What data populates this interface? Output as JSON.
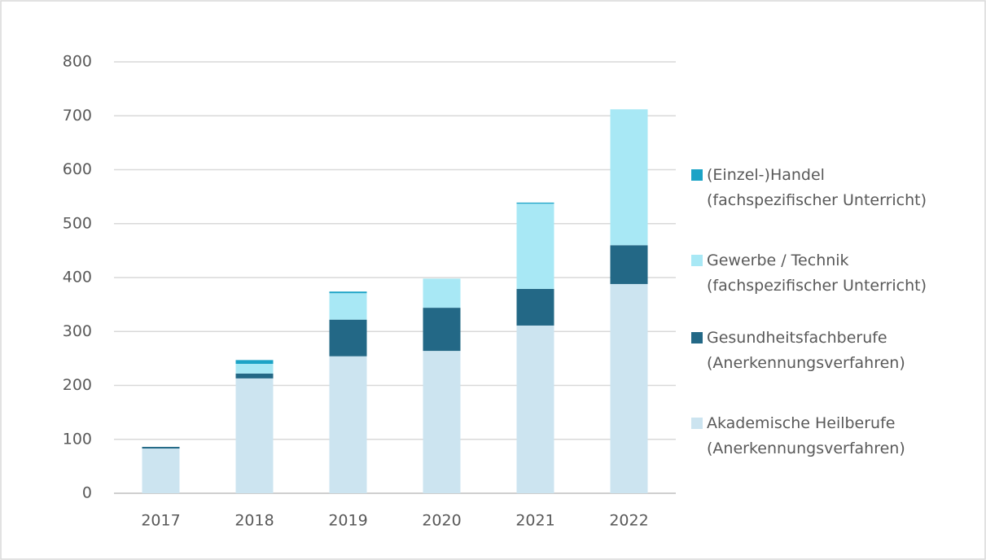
{
  "chart_data": {
    "type": "stacked_bar",
    "categories": [
      "2017",
      "2018",
      "2019",
      "2020",
      "2021",
      "2022"
    ],
    "series": [
      {
        "name": "Akademische Heilberufe\n(Anerkennungsverfahren)",
        "color": "#cce4f0",
        "values": [
          83,
          213,
          254,
          264,
          311,
          388
        ]
      },
      {
        "name": "Gesundheitsfachberufe\n(Anerkennungsverfahren)",
        "color": "#236886",
        "values": [
          3,
          9,
          68,
          80,
          68,
          72
        ]
      },
      {
        "name": "Gewerbe / Technik\n(fachspezifischer Unterricht)",
        "color": "#a8e8f5",
        "values": [
          0,
          18,
          49,
          54,
          158,
          252
        ]
      },
      {
        "name": "(Einzel-)Handel\n(fachspezifischer Unterricht)",
        "color": "#1ba3c6",
        "values": [
          0,
          7,
          3,
          0,
          2,
          0
        ]
      }
    ],
    "ylim": [
      0,
      800
    ],
    "yticks": [
      0,
      100,
      200,
      300,
      400,
      500,
      600,
      700,
      800
    ],
    "grid": true,
    "legend": "right"
  }
}
